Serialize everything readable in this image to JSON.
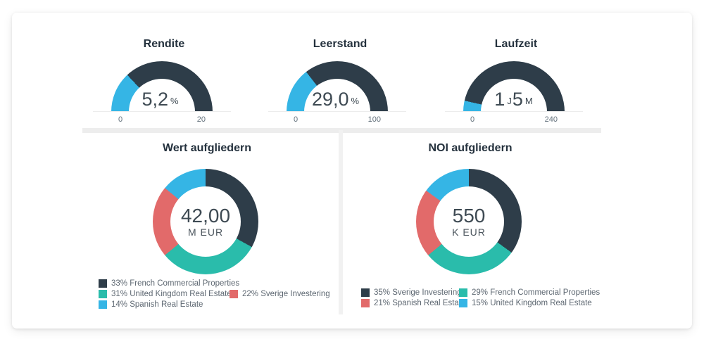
{
  "palette": {
    "dark": "#2e3d49",
    "teal": "#2abcab",
    "red": "#e26a6a",
    "blue": "#35b5e5"
  },
  "chart_data": [
    {
      "type": "gauge",
      "title": "Rendite",
      "value": 5.2,
      "min": 0,
      "max": 20,
      "tick_min": "0",
      "tick_max": "20",
      "value_display": {
        "main": "5,2",
        "unit": "%"
      },
      "colors": {
        "filled": "#35b5e5",
        "remaining": "#2e3d49"
      }
    },
    {
      "type": "gauge",
      "title": "Leerstand",
      "value": 29.0,
      "min": 0,
      "max": 100,
      "tick_min": "0",
      "tick_max": "100",
      "value_display": {
        "main": "29,0",
        "unit": "%"
      },
      "colors": {
        "filled": "#35b5e5",
        "remaining": "#2e3d49"
      }
    },
    {
      "type": "gauge",
      "title": "Laufzeit",
      "value": 17,
      "min": 0,
      "max": 240,
      "tick_min": "0",
      "tick_max": "240",
      "value_display": {
        "main": "1",
        "unit": "J",
        "main2": "5",
        "unit2": "M"
      },
      "colors": {
        "filled": "#35b5e5",
        "remaining": "#2e3d49"
      }
    },
    {
      "type": "donut",
      "title": "Wert aufgliedern",
      "center_value": "42,00",
      "center_unit": "M EUR",
      "slices": [
        {
          "label": "French Commercial Properties",
          "pct": 33,
          "color": "#2e3d49"
        },
        {
          "label": "United Kingdom Real Estate",
          "pct": 31,
          "color": "#2abcab"
        },
        {
          "label": "Sverige Investering",
          "pct": 22,
          "color": "#e26a6a"
        },
        {
          "label": "Spanish Real Estate",
          "pct": 14,
          "color": "#35b5e5"
        }
      ],
      "legend_rows": [
        [
          0
        ],
        [
          1,
          2
        ],
        [
          3
        ]
      ]
    },
    {
      "type": "donut",
      "title": "NOI aufgliedern",
      "center_value": "550",
      "center_unit": "K EUR",
      "slices": [
        {
          "label": "Sverige Investering",
          "pct": 35,
          "color": "#2e3d49"
        },
        {
          "label": "French Commercial Properties",
          "pct": 29,
          "color": "#2abcab"
        },
        {
          "label": "Spanish Real Estate",
          "pct": 21,
          "color": "#e26a6a"
        },
        {
          "label": "United Kingdom Real Estate",
          "pct": 15,
          "color": "#35b5e5"
        }
      ],
      "legend_rows": [
        [
          0,
          1
        ],
        [
          2,
          3
        ]
      ]
    }
  ]
}
